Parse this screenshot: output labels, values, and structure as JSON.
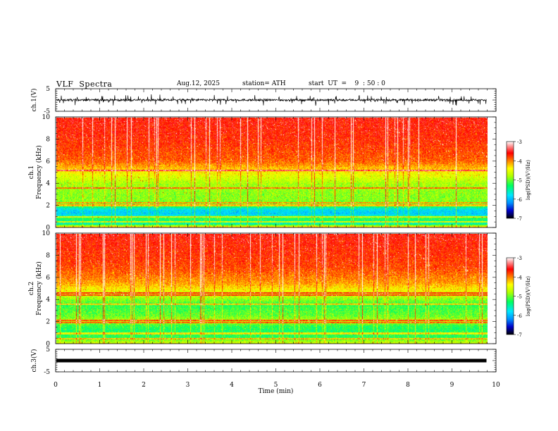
{
  "header": {
    "title": "VLF  Spectra",
    "date": "Aug.12, 2025",
    "station": "station= ATH",
    "start_ut": "start  UT  =    9  : 50 : 0"
  },
  "chart_data": {
    "type": "heatmap",
    "title": "VLF  Spectra",
    "xlabel": "Time  (min)",
    "xlim": [
      0,
      10
    ],
    "x_data_end_min": 9.8,
    "x_ticks": [
      "0",
      "1",
      "2",
      "3",
      "4",
      "5",
      "6",
      "7",
      "8",
      "9",
      "10"
    ],
    "panels": [
      {
        "name": "ch1-waveform",
        "type": "line",
        "ylabel": "ch.1(V)",
        "ylim": [
          -5,
          5
        ],
        "y_ticks": [
          "5",
          "-5"
        ],
        "description_values": {
          "typical_min": -1.5,
          "typical_max": 1.5
        }
      },
      {
        "name": "ch1-spectrogram",
        "type": "heatmap",
        "ylabel_line1": "ch.1",
        "ylabel_line2": "Frequency  (kHz)",
        "ylim": [
          0,
          10
        ],
        "y_ticks": [
          "0",
          "2",
          "4",
          "6",
          "8",
          "10"
        ],
        "color_range": [
          -7,
          -3
        ],
        "band_profile_log_psd": [
          {
            "f": 0.0,
            "v": -4.2
          },
          {
            "f": 0.3,
            "v": -5.6
          },
          {
            "f": 0.8,
            "v": -5.2
          },
          {
            "f": 1.2,
            "v": -5.9
          },
          {
            "f": 1.6,
            "v": -5.8
          },
          {
            "f": 2.0,
            "v": -5.1
          },
          {
            "f": 2.4,
            "v": -4.9
          },
          {
            "f": 3.0,
            "v": -4.9
          },
          {
            "f": 4.0,
            "v": -4.8
          },
          {
            "f": 5.0,
            "v": -4.4
          },
          {
            "f": 6.0,
            "v": -3.9
          },
          {
            "f": 8.0,
            "v": -3.7
          },
          {
            "f": 10.0,
            "v": -3.6
          }
        ],
        "lines_khz": [
          0.5,
          0.95,
          2.0,
          2.25,
          3.6,
          5.2
        ]
      },
      {
        "name": "ch2-spectrogram",
        "type": "heatmap",
        "ylabel_line1": "ch.2",
        "ylabel_line2": "Frequency  (kHz)",
        "ylim": [
          0,
          10
        ],
        "y_ticks": [
          "0",
          "2",
          "4",
          "6",
          "8",
          "10"
        ],
        "color_range": [
          -7,
          -3
        ],
        "band_profile_log_psd": [
          {
            "f": 0.0,
            "v": -4.6
          },
          {
            "f": 0.5,
            "v": -5.2
          },
          {
            "f": 1.0,
            "v": -5.3
          },
          {
            "f": 1.6,
            "v": -5.2
          },
          {
            "f": 2.0,
            "v": -4.7
          },
          {
            "f": 2.5,
            "v": -5.0
          },
          {
            "f": 3.5,
            "v": -5.2
          },
          {
            "f": 4.5,
            "v": -4.6
          },
          {
            "f": 5.5,
            "v": -4.1
          },
          {
            "f": 7.0,
            "v": -3.8
          },
          {
            "f": 10.0,
            "v": -3.6
          }
        ],
        "lines_khz": [
          0.4,
          0.9,
          1.9,
          2.1,
          3.6,
          4.4,
          4.6
        ]
      },
      {
        "name": "ch3-waveform",
        "type": "line",
        "ylabel": "ch.3(V)",
        "ylim": [
          -5,
          5
        ],
        "y_ticks": [
          "5",
          "-5"
        ],
        "level_v": 0
      }
    ],
    "colorbar": {
      "label": "log(PSD)(V²/Hz)",
      "range": [
        -7,
        -3
      ],
      "ticks": [
        "-3",
        "-4",
        "-5",
        "-6",
        "-7"
      ],
      "stops": [
        {
          "v": -7,
          "c": "#000000"
        },
        {
          "v": -6.6,
          "c": "#0000c8"
        },
        {
          "v": -6.2,
          "c": "#0090ff"
        },
        {
          "v": -5.8,
          "c": "#00e6ff"
        },
        {
          "v": -5.3,
          "c": "#00ff60"
        },
        {
          "v": -4.8,
          "c": "#b0ff00"
        },
        {
          "v": -4.4,
          "c": "#ffff00"
        },
        {
          "v": -4.0,
          "c": "#ff8000"
        },
        {
          "v": -3.6,
          "c": "#ff0000"
        },
        {
          "v": -3.25,
          "c": "#ff9090"
        },
        {
          "v": -3.0,
          "c": "#ffffff"
        }
      ]
    }
  }
}
